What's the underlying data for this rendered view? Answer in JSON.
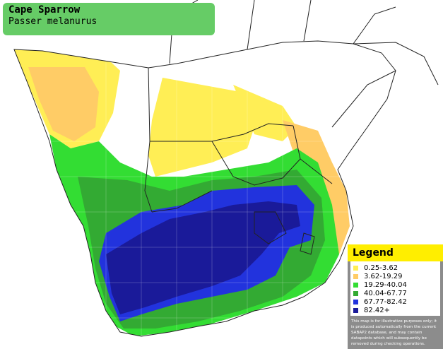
{
  "title": {
    "common_name": "Cape Sparrow",
    "scientific_name": "Passer melanurus"
  },
  "legend": {
    "heading": "Legend",
    "items": [
      {
        "label": "0.25-3.62",
        "color": "#ffee55"
      },
      {
        "label": "3.62-19.29",
        "color": "#ffcc66"
      },
      {
        "label": "19.29-40.04",
        "color": "#33dd33"
      },
      {
        "label": "40.04-67.77",
        "color": "#33aa33"
      },
      {
        "label": "67.77-82.42",
        "color": "#2233dd"
      },
      {
        "label": "82.42+",
        "color": "#1a1a99"
      }
    ],
    "note": "This map is for illustrative purposes only; it is produced automatically from the current SABAP2 database, and may contain datapoints which will subsequently be removed during checking operations."
  },
  "colors": {
    "title_background": "#66cc66",
    "legend_heading_background": "#ffee00",
    "legend_background": "#8c8c8c",
    "country_borders": "#222222"
  }
}
